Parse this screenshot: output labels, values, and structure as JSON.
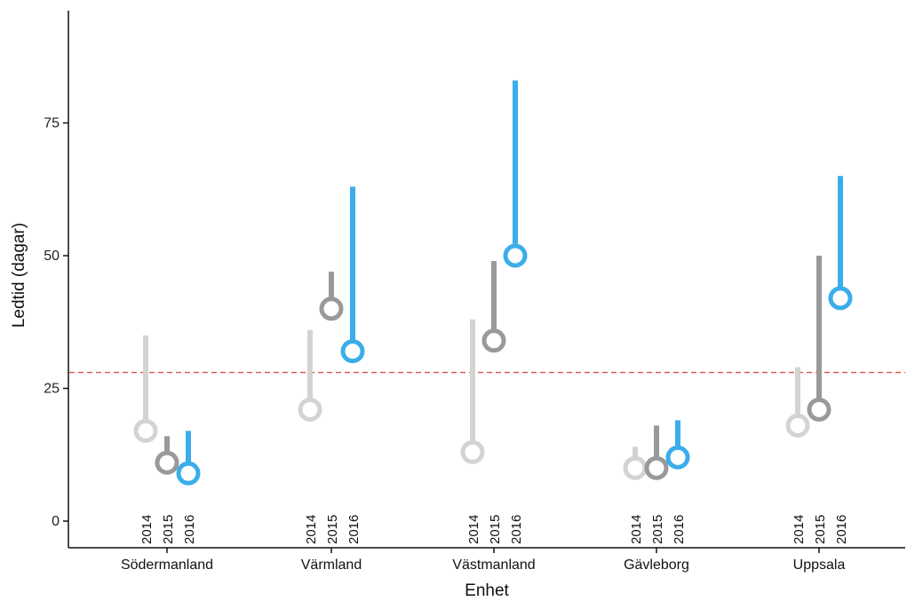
{
  "chart_data": {
    "type": "dot-range",
    "title": "",
    "xlabel": "Enhet",
    "ylabel": "Ledtid (dagar)",
    "ylim": [
      -5,
      96
    ],
    "yticks": [
      0,
      25,
      50,
      75
    ],
    "grid": false,
    "legend": "none",
    "reference_line": {
      "value": 28,
      "color": "#d9534f",
      "style": "dashed"
    },
    "years": [
      "2014",
      "2015",
      "2016"
    ],
    "year_colors": [
      "#d3d3d3",
      "#999999",
      "#3badea"
    ],
    "categories": [
      "Södermanland",
      "Värmland",
      "Västmanland",
      "Gävleborg",
      "Uppsala"
    ],
    "series": [
      {
        "category": "Södermanland",
        "points": [
          {
            "year": "2014",
            "median": 17,
            "upper": 35
          },
          {
            "year": "2015",
            "median": 11,
            "upper": 16
          },
          {
            "year": "2016",
            "median": 9,
            "upper": 17
          }
        ]
      },
      {
        "category": "Värmland",
        "points": [
          {
            "year": "2014",
            "median": 21,
            "upper": 36
          },
          {
            "year": "2015",
            "median": 40,
            "upper": 47
          },
          {
            "year": "2016",
            "median": 32,
            "upper": 63
          }
        ]
      },
      {
        "category": "Västmanland",
        "points": [
          {
            "year": "2014",
            "median": 13,
            "upper": 38
          },
          {
            "year": "2015",
            "median": 34,
            "upper": 49
          },
          {
            "year": "2016",
            "median": 50,
            "upper": 83
          }
        ]
      },
      {
        "category": "Gävleborg",
        "points": [
          {
            "year": "2014",
            "median": 10,
            "upper": 14
          },
          {
            "year": "2015",
            "median": 10,
            "upper": 18
          },
          {
            "year": "2016",
            "median": 12,
            "upper": 19
          }
        ]
      },
      {
        "category": "Uppsala",
        "points": [
          {
            "year": "2014",
            "median": 18,
            "upper": 29
          },
          {
            "year": "2015",
            "median": 21,
            "upper": 50
          },
          {
            "year": "2016",
            "median": 42,
            "upper": 65
          }
        ]
      }
    ]
  }
}
